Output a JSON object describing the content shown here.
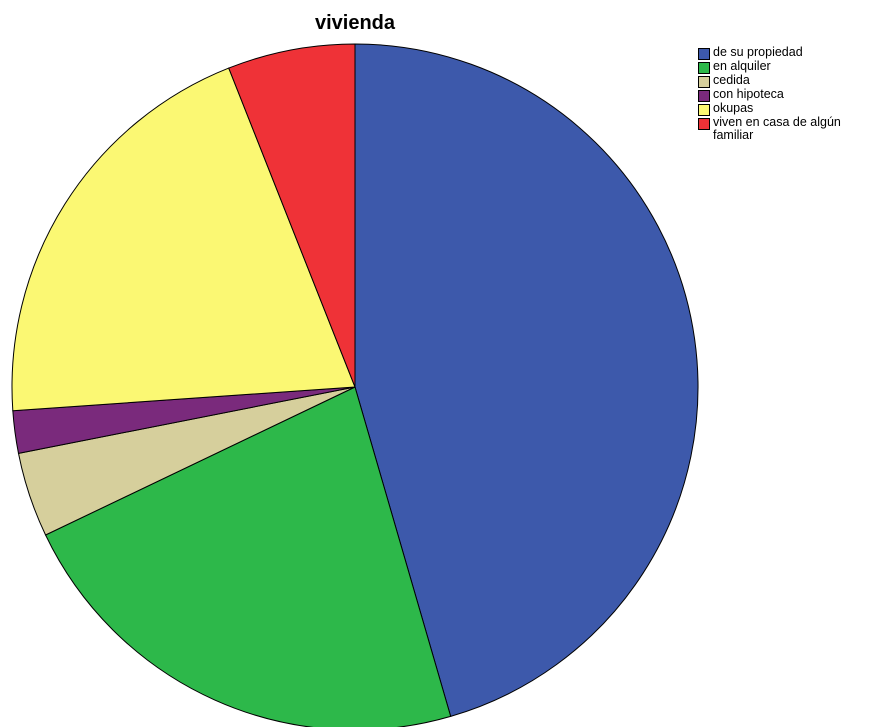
{
  "chart_data": {
    "type": "pie",
    "title": "vivienda",
    "legend_position": "top-right",
    "start": "12 o'clock",
    "direction": "clockwise",
    "slices": [
      {
        "label": "de su propiedad",
        "value": 45.5,
        "color": "#3d59ab"
      },
      {
        "label": "en alquiler",
        "value": 22.4,
        "color": "#2db84a"
      },
      {
        "label": "cedida",
        "value": 4.0,
        "color": "#d6cf9c"
      },
      {
        "label": "con hipoteca",
        "value": 2.0,
        "color": "#7a2a7c"
      },
      {
        "label": "okupas",
        "value": 20.1,
        "color": "#fbf873"
      },
      {
        "label": "viven en casa de algún familiar",
        "value": 6.0,
        "color": "#ef3237"
      }
    ]
  }
}
